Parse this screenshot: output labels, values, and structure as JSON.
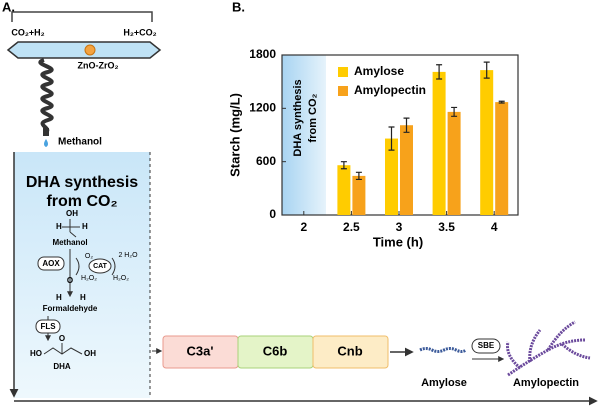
{
  "panel_a": {
    "label": "A.",
    "reactor": {
      "left_gas": "CO₂+H₂",
      "right_gas": "H₂+CO₂",
      "catalyst": "ZnO-ZrO₂",
      "product": "Methanol"
    },
    "dha_box": {
      "title_line1": "DHA synthesis",
      "title_line2": "from CO₂",
      "methanol_atoms": [
        "OH",
        "H",
        "H"
      ],
      "methanol": "Methanol",
      "aox": "AOX",
      "cat": "CAT",
      "o2": "O₂",
      "water": "2 H₂O",
      "h2o2_left": "H₂O₂",
      "h2o2_right": "H₂O₂",
      "formaldehyde_atoms": [
        "O",
        "H",
        "H"
      ],
      "formaldehyde": "Formaldehyde",
      "fls": "FLS",
      "dha_atoms": [
        "HO",
        "O",
        "OH"
      ],
      "dha": "DHA"
    },
    "modules": [
      "C3a'",
      "C6b",
      "Cnb"
    ],
    "amylose": "Amylose",
    "sbe": "SBE",
    "amylopectin": "Amylopectin"
  },
  "chart_data": {
    "type": "bar",
    "panel_label": "B.",
    "annotation": [
      "DHA synthesis",
      "from CO₂"
    ],
    "x_label": "Time (h)",
    "y_label": "Starch (mg/L)",
    "categories": [
      "2",
      "2.5",
      "3",
      "3.5",
      "4"
    ],
    "series": [
      {
        "name": "Amylose",
        "color": "#ffcc00",
        "values": [
          null,
          560,
          860,
          1610,
          1630
        ],
        "errors": [
          null,
          40,
          130,
          80,
          90
        ]
      },
      {
        "name": "Amylopectin",
        "color": "#f7a21b",
        "values": [
          null,
          440,
          1010,
          1160,
          1270
        ],
        "errors": [
          null,
          40,
          80,
          50,
          10
        ]
      }
    ],
    "ylim": [
      0,
      1800
    ],
    "yticks": [
      0,
      600,
      1200,
      1800
    ],
    "legend": "upper left"
  }
}
